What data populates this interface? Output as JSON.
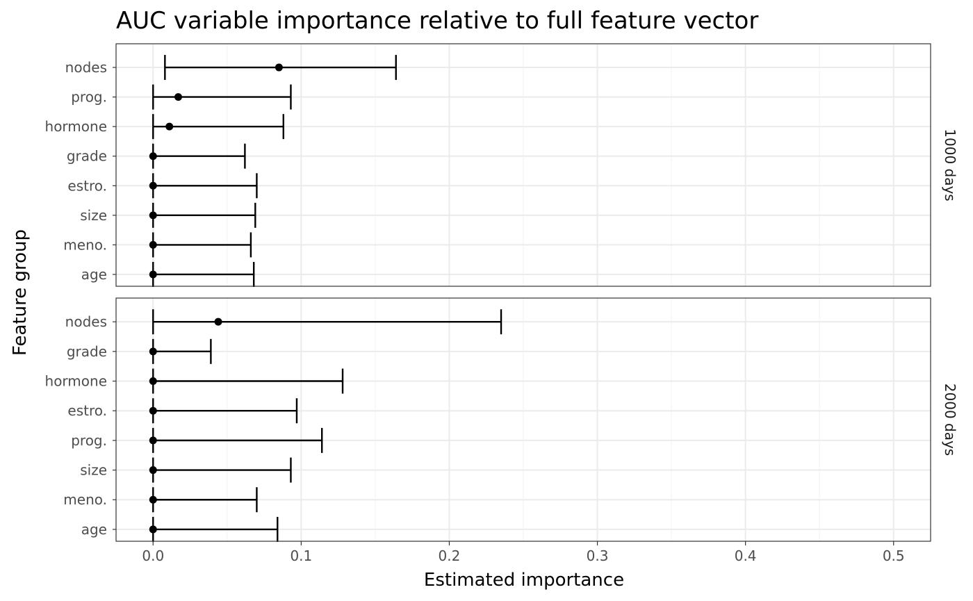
{
  "chart_data": {
    "type": "dot-and-interval",
    "title": "AUC variable importance relative to full feature vector",
    "xlabel": "Estimated importance",
    "ylabel": "Feature group",
    "xlim": [
      -0.025,
      0.525
    ],
    "x_ticks": [
      0.0,
      0.1,
      0.2,
      0.3,
      0.4,
      0.5
    ],
    "x_tick_labels": [
      "0.0",
      "0.1",
      "0.2",
      "0.3",
      "0.4",
      "0.5"
    ],
    "grid": true,
    "facets": [
      {
        "label": "1000 days",
        "rows": [
          {
            "feature": "nodes",
            "estimate": 0.085,
            "lower": 0.008,
            "upper": 0.164
          },
          {
            "feature": "prog.",
            "estimate": 0.017,
            "lower": 0.0,
            "upper": 0.093
          },
          {
            "feature": "hormone",
            "estimate": 0.011,
            "lower": 0.0,
            "upper": 0.088
          },
          {
            "feature": "grade",
            "estimate": 0.0,
            "lower": 0.0,
            "upper": 0.062
          },
          {
            "feature": "estro.",
            "estimate": 0.0,
            "lower": 0.0,
            "upper": 0.07
          },
          {
            "feature": "size",
            "estimate": 0.0,
            "lower": 0.0,
            "upper": 0.069
          },
          {
            "feature": "meno.",
            "estimate": 0.0,
            "lower": 0.0,
            "upper": 0.066
          },
          {
            "feature": "age",
            "estimate": 0.0,
            "lower": 0.0,
            "upper": 0.068
          }
        ]
      },
      {
        "label": "2000 days",
        "rows": [
          {
            "feature": "nodes",
            "estimate": 0.044,
            "lower": 0.0,
            "upper": 0.235
          },
          {
            "feature": "grade",
            "estimate": 0.0,
            "lower": 0.0,
            "upper": 0.039
          },
          {
            "feature": "hormone",
            "estimate": 0.0,
            "lower": 0.0,
            "upper": 0.128
          },
          {
            "feature": "estro.",
            "estimate": 0.0,
            "lower": 0.0,
            "upper": 0.097
          },
          {
            "feature": "prog.",
            "estimate": 0.0,
            "lower": 0.0,
            "upper": 0.114
          },
          {
            "feature": "size",
            "estimate": 0.0,
            "lower": 0.0,
            "upper": 0.093
          },
          {
            "feature": "meno.",
            "estimate": 0.0,
            "lower": 0.0,
            "upper": 0.07
          },
          {
            "feature": "age",
            "estimate": 0.0,
            "lower": 0.0,
            "upper": 0.084
          }
        ]
      }
    ]
  }
}
